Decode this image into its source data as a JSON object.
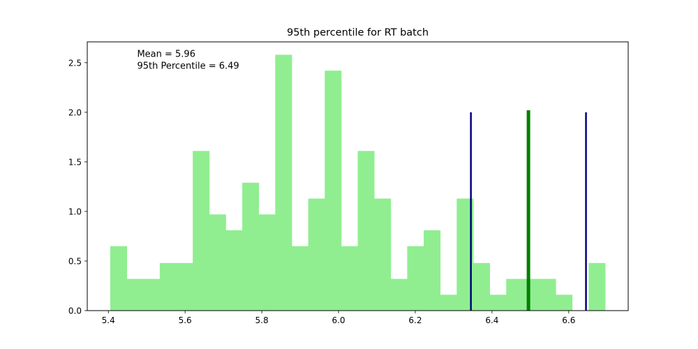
{
  "chart_data": {
    "type": "bar",
    "title": "95th percentile for RT batch",
    "xlabel": "",
    "ylabel": "",
    "xlim": [
      5.345,
      6.755
    ],
    "ylim": [
      0,
      2.71
    ],
    "x_ticks": [
      5.4,
      5.6,
      5.8,
      6.0,
      6.2,
      6.4,
      6.6
    ],
    "x_tick_labels": [
      "5.4",
      "5.6",
      "5.8",
      "6.0",
      "6.2",
      "6.4",
      "6.6"
    ],
    "y_ticks": [
      0.0,
      0.5,
      1.0,
      1.5,
      2.0,
      2.5
    ],
    "y_tick_labels": [
      "0.0",
      "0.5",
      "1.0",
      "1.5",
      "2.0",
      "2.5"
    ],
    "bar_color": "#90ee90",
    "bins": [
      {
        "x0": 5.405,
        "x1": 5.448,
        "value": 0.65
      },
      {
        "x0": 5.448,
        "x1": 5.491,
        "value": 0.32
      },
      {
        "x0": 5.491,
        "x1": 5.534,
        "value": 0.32
      },
      {
        "x0": 5.534,
        "x1": 5.577,
        "value": 0.48
      },
      {
        "x0": 5.577,
        "x1": 5.62,
        "value": 0.48
      },
      {
        "x0": 5.62,
        "x1": 5.663,
        "value": 1.61
      },
      {
        "x0": 5.663,
        "x1": 5.706,
        "value": 0.97
      },
      {
        "x0": 5.706,
        "x1": 5.749,
        "value": 0.81
      },
      {
        "x0": 5.749,
        "x1": 5.792,
        "value": 1.29
      },
      {
        "x0": 5.792,
        "x1": 5.835,
        "value": 0.97
      },
      {
        "x0": 5.835,
        "x1": 5.878,
        "value": 2.58
      },
      {
        "x0": 5.878,
        "x1": 5.921,
        "value": 0.65
      },
      {
        "x0": 5.921,
        "x1": 5.964,
        "value": 1.13
      },
      {
        "x0": 5.964,
        "x1": 6.007,
        "value": 2.42
      },
      {
        "x0": 6.007,
        "x1": 6.05,
        "value": 0.65
      },
      {
        "x0": 6.05,
        "x1": 6.093,
        "value": 1.61
      },
      {
        "x0": 6.093,
        "x1": 6.136,
        "value": 1.13
      },
      {
        "x0": 6.136,
        "x1": 6.179,
        "value": 0.32
      },
      {
        "x0": 6.179,
        "x1": 6.222,
        "value": 0.65
      },
      {
        "x0": 6.222,
        "x1": 6.265,
        "value": 0.81
      },
      {
        "x0": 6.265,
        "x1": 6.308,
        "value": 0.16
      },
      {
        "x0": 6.308,
        "x1": 6.351,
        "value": 1.13
      },
      {
        "x0": 6.351,
        "x1": 6.394,
        "value": 0.48
      },
      {
        "x0": 6.394,
        "x1": 6.437,
        "value": 0.16
      },
      {
        "x0": 6.437,
        "x1": 6.48,
        "value": 0.32
      },
      {
        "x0": 6.48,
        "x1": 6.523,
        "value": 0.32
      },
      {
        "x0": 6.523,
        "x1": 6.566,
        "value": 0.32
      },
      {
        "x0": 6.566,
        "x1": 6.609,
        "value": 0.16
      },
      {
        "x0": 6.609,
        "x1": 6.652,
        "value": 0.0
      },
      {
        "x0": 6.652,
        "x1": 6.695,
        "value": 0.48
      }
    ],
    "vlines": [
      {
        "x": 6.345,
        "ymax": 2.0,
        "color": "#000080",
        "width": 2.5
      },
      {
        "x": 6.495,
        "ymax": 2.02,
        "color": "#008000",
        "width": 5
      },
      {
        "x": 6.645,
        "ymax": 2.0,
        "color": "#000080",
        "width": 2.5
      }
    ],
    "annotations": [
      {
        "text": "Mean = 5.96",
        "x": 5.475,
        "y": 2.59
      },
      {
        "text": "95th Percentile = 6.49",
        "x": 5.475,
        "y": 2.47
      }
    ]
  }
}
